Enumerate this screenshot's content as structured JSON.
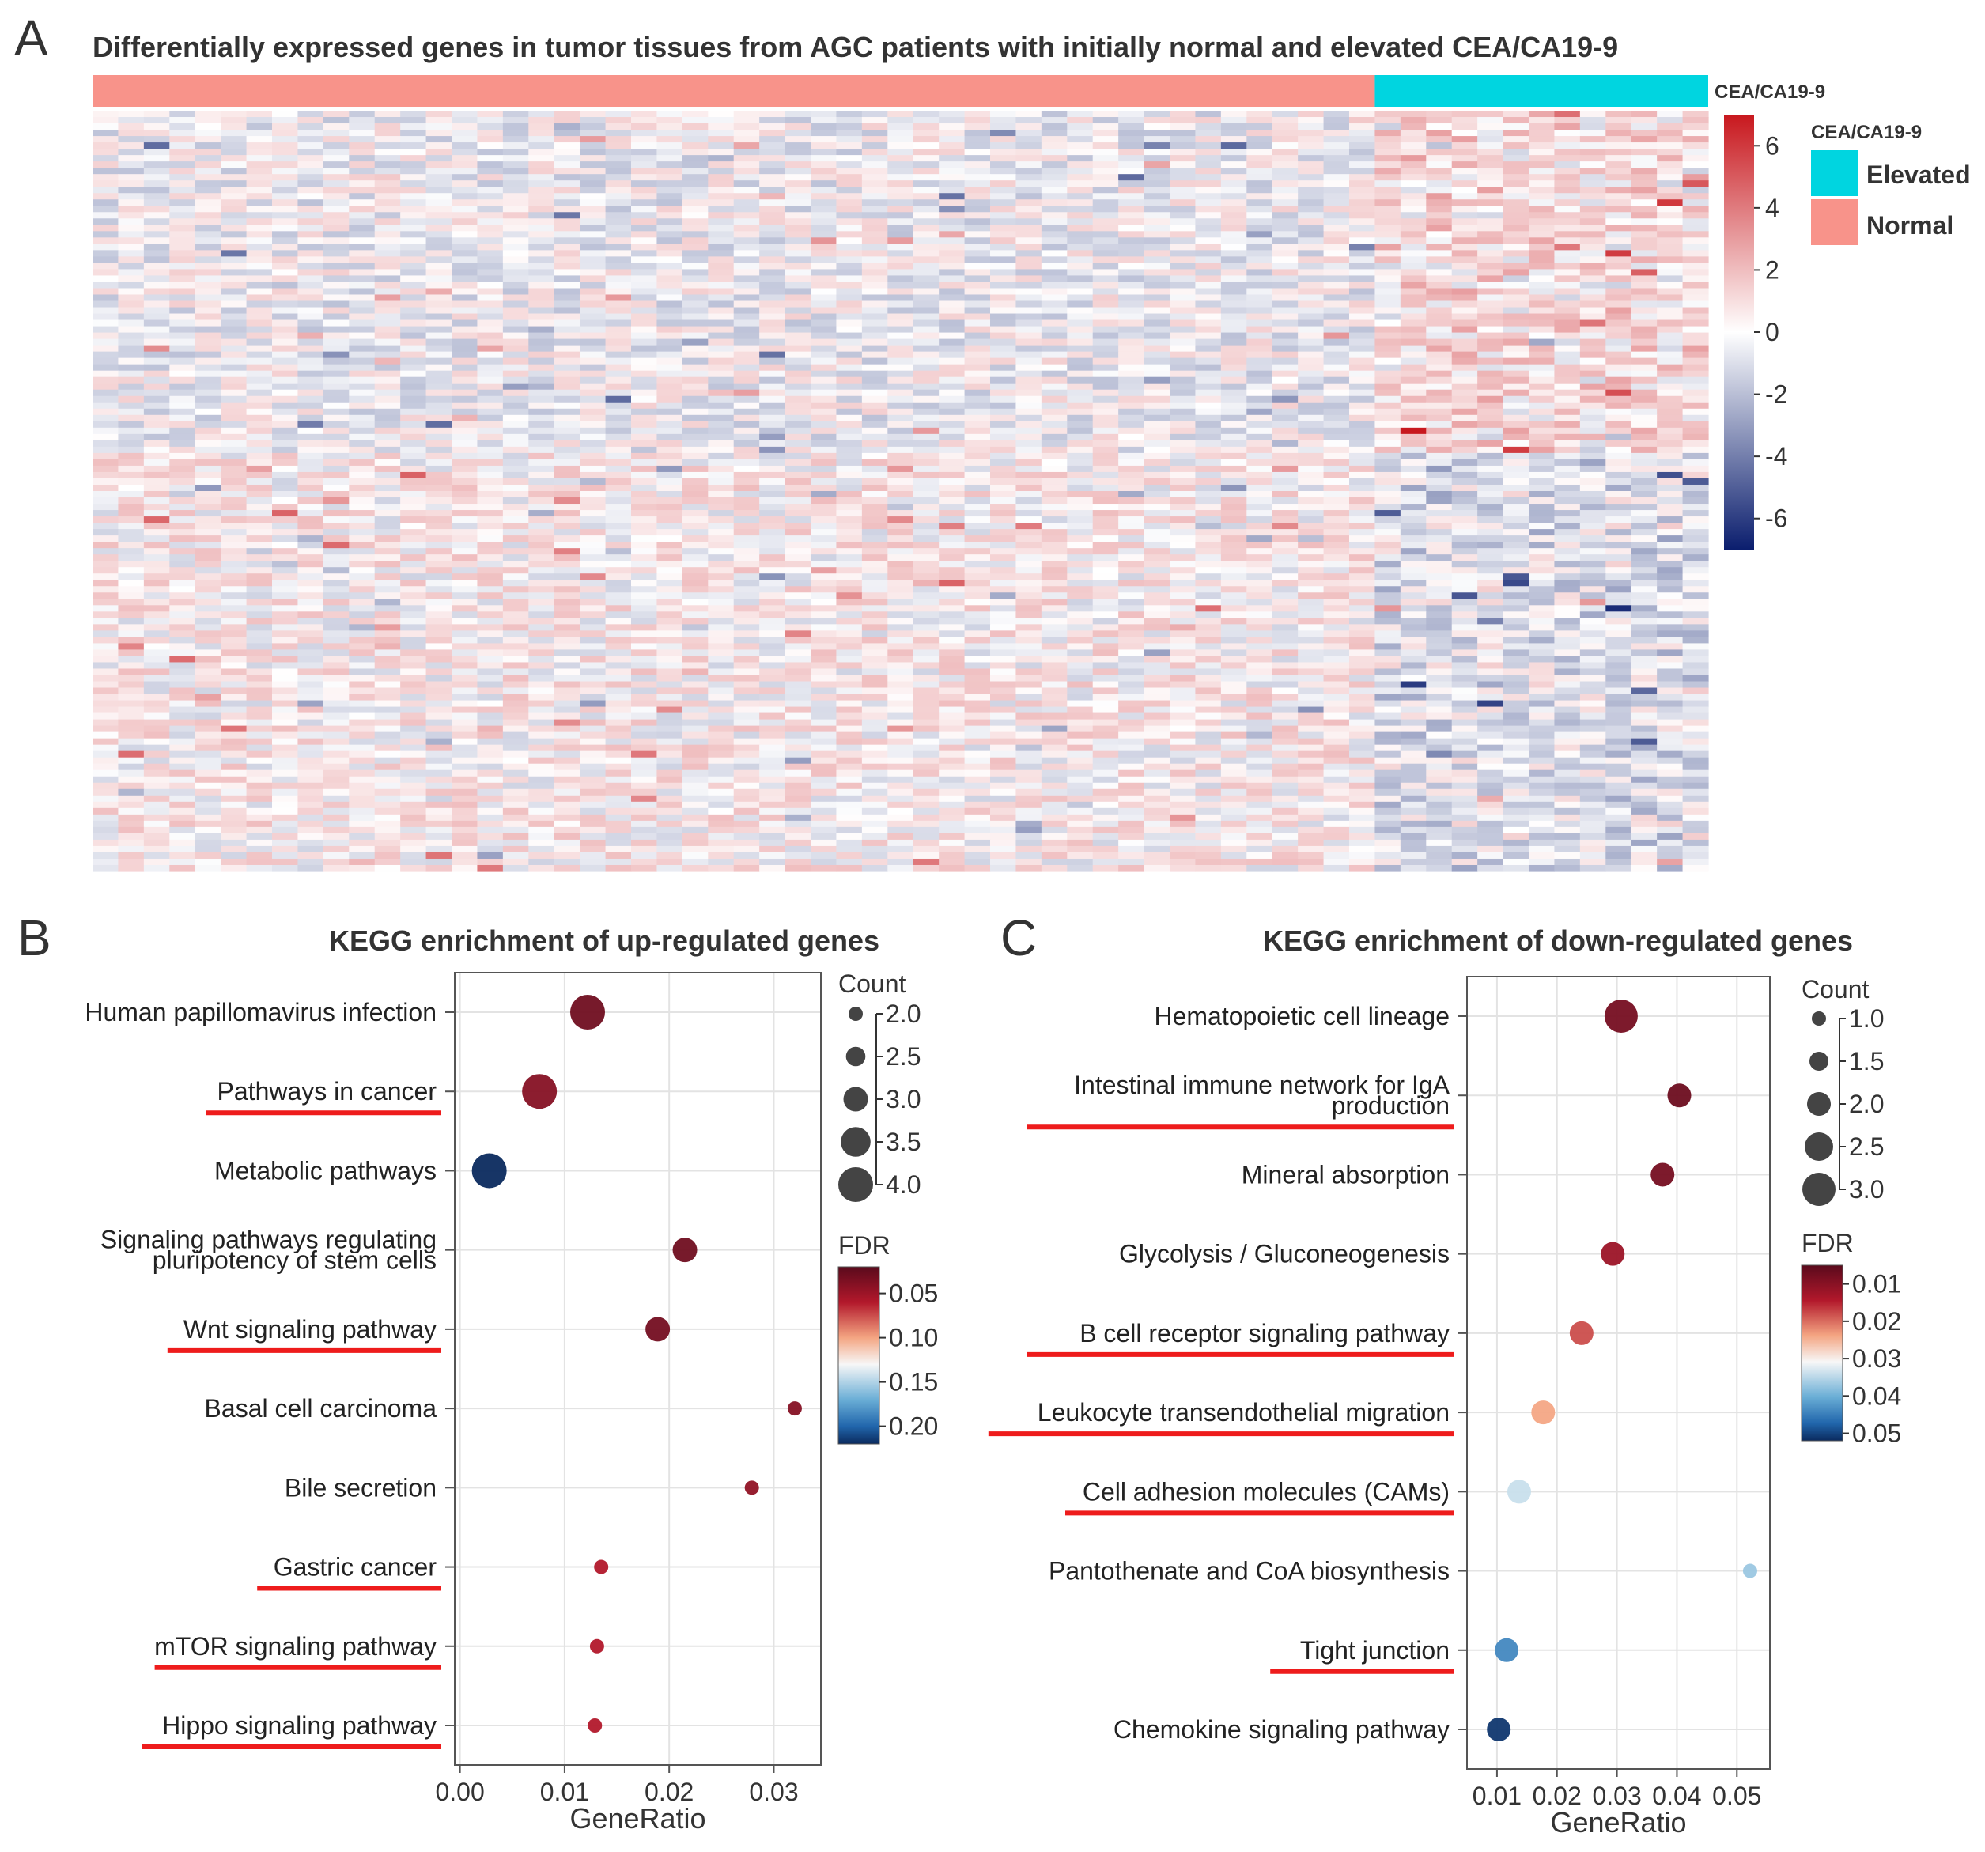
{
  "panel_labels": [
    "A",
    "B",
    "C"
  ],
  "chart_data": [
    {
      "type": "heatmap",
      "title": "Differentially expressed genes in tumor tissues from AGC patients with initially normal and elevated CEA/CA19-9",
      "annotation_label": "CEA/CA19-9",
      "groups": [
        {
          "name": "Normal",
          "color": "#f8938a",
          "n_samples": 50
        },
        {
          "name": "Elevated",
          "color": "#00d5e0",
          "n_samples": 13
        }
      ],
      "n_genes": 120,
      "colorbar": {
        "min": -7,
        "max": 7,
        "ticks": [
          6,
          4,
          2,
          0,
          -2,
          -4,
          -6
        ],
        "low_color": "#0b1e6e",
        "mid_color": "#ffffff",
        "high_color": "#c8181e"
      },
      "legend_title": "CEA/CA19-9"
    },
    {
      "type": "scatter",
      "title": "KEGG enrichment of up-regulated genes",
      "xlabel": "GeneRatio",
      "xlim": [
        -0.0005,
        0.0345
      ],
      "xticks": [
        0.0,
        0.01,
        0.02,
        0.03
      ],
      "xtick_labels": [
        "0.00",
        "0.01",
        "0.02",
        "0.03"
      ],
      "categories": [
        "Human papillomavirus infection",
        "Pathways in cancer",
        "Metabolic pathways",
        "Signaling pathways regulating pluripotency of stem cells",
        "Wnt signaling pathway",
        "Basal cell carcinoma",
        "Bile secretion",
        "Gastric cancer",
        "mTOR signaling pathway",
        "Hippo signaling pathway"
      ],
      "category_lines": [
        [
          "Human papillomavirus infection"
        ],
        [
          "Pathways in cancer"
        ],
        [
          "Metabolic pathways"
        ],
        [
          "Signaling pathways regulating",
          "pluripotency of stem cells"
        ],
        [
          "Wnt signaling pathway"
        ],
        [
          "Basal cell carcinoma"
        ],
        [
          "Bile secretion"
        ],
        [
          "Gastric cancer"
        ],
        [
          "mTOR signaling pathway"
        ],
        [
          "Hippo signaling pathway"
        ]
      ],
      "underlined": [
        false,
        true,
        false,
        false,
        true,
        false,
        false,
        true,
        true,
        true
      ],
      "gene_ratio": [
        0.0122,
        0.0076,
        0.0028,
        0.0215,
        0.0189,
        0.032,
        0.0279,
        0.0135,
        0.0131,
        0.0129
      ],
      "count": [
        4,
        4,
        4,
        3,
        3,
        2,
        2,
        2,
        2,
        2
      ],
      "fdr": [
        0.03,
        0.04,
        0.22,
        0.03,
        0.032,
        0.04,
        0.045,
        0.06,
        0.06,
        0.06
      ],
      "size_legend": {
        "title": "Count",
        "values": [
          2.0,
          2.5,
          3.0,
          3.5,
          4.0
        ],
        "labels": [
          "2.0",
          "2.5",
          "3.0",
          "3.5",
          "4.0"
        ]
      },
      "color_legend": {
        "title": "FDR",
        "min": 0.02,
        "max": 0.22,
        "ticks": [
          0.05,
          0.1,
          0.15,
          0.2
        ],
        "labels": [
          "0.05",
          "0.10",
          "0.15",
          "0.20"
        ]
      }
    },
    {
      "type": "scatter",
      "title": "KEGG enrichment of down-regulated genes",
      "xlabel": "GeneRatio",
      "xlim": [
        0.005,
        0.0555
      ],
      "xticks": [
        0.01,
        0.02,
        0.03,
        0.04,
        0.05
      ],
      "xtick_labels": [
        "0.01",
        "0.02",
        "0.03",
        "0.04",
        "0.05"
      ],
      "categories": [
        "Hematopoietic cell lineage",
        "Intestinal immune network for IgA production",
        "Mineral absorption",
        "Glycolysis / Gluconeogenesis",
        "B cell receptor signaling pathway",
        "Leukocyte transendothelial migration",
        "Cell adhesion molecules (CAMs)",
        "Pantothenate and CoA biosynthesis",
        "Tight junction",
        "Chemokine signaling pathway"
      ],
      "category_lines": [
        [
          "Hematopoietic cell lineage"
        ],
        [
          "Intestinal immune network for IgA",
          "production"
        ],
        [
          "Mineral absorption"
        ],
        [
          "Glycolysis / Gluconeogenesis"
        ],
        [
          "B cell receptor signaling pathway"
        ],
        [
          "Leukocyte transendothelial migration"
        ],
        [
          "Cell adhesion molecules (CAMs)"
        ],
        [
          "Pantothenate and CoA biosynthesis"
        ],
        [
          "Tight junction"
        ],
        [
          "Chemokine signaling pathway"
        ]
      ],
      "underlined": [
        false,
        true,
        false,
        false,
        true,
        true,
        true,
        false,
        true,
        false
      ],
      "gene_ratio": [
        0.0307,
        0.0404,
        0.0376,
        0.0293,
        0.0241,
        0.0177,
        0.0137,
        0.0522,
        0.0116,
        0.0103
      ],
      "count": [
        3,
        2,
        2,
        2,
        2,
        2,
        2,
        1,
        2,
        2
      ],
      "fdr": [
        0.008,
        0.007,
        0.008,
        0.012,
        0.018,
        0.024,
        0.034,
        0.037,
        0.044,
        0.051
      ],
      "size_legend": {
        "title": "Count",
        "values": [
          1.0,
          1.5,
          2.0,
          2.5,
          3.0
        ],
        "labels": [
          "1.0",
          "1.5",
          "2.0",
          "2.5",
          "3.0"
        ]
      },
      "color_legend": {
        "title": "FDR",
        "min": 0.005,
        "max": 0.052,
        "ticks": [
          0.01,
          0.02,
          0.03,
          0.04,
          0.05
        ],
        "labels": [
          "0.01",
          "0.02",
          "0.03",
          "0.04",
          "0.05"
        ]
      }
    }
  ]
}
